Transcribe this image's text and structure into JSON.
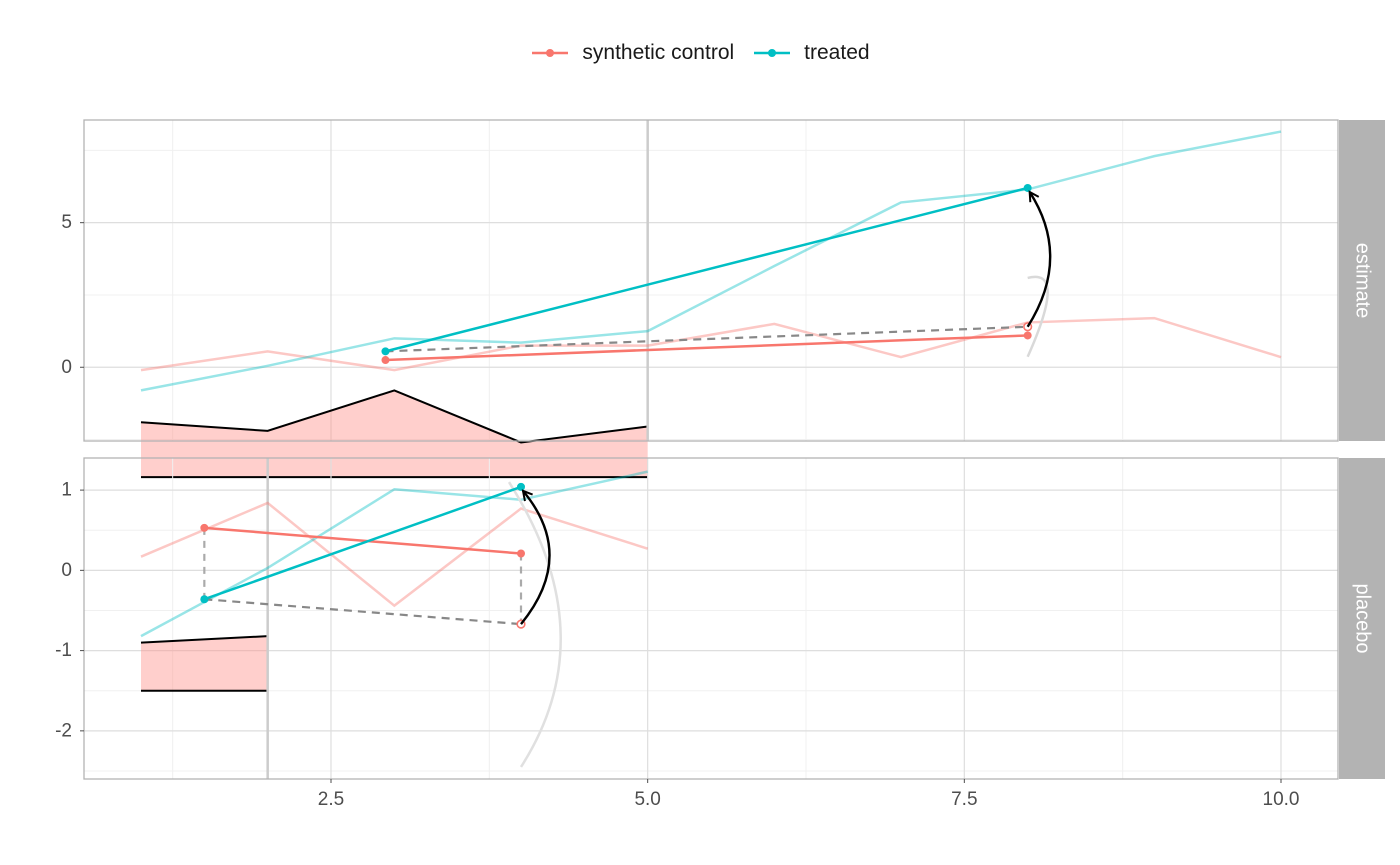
{
  "legend": {
    "items": [
      {
        "label": "synthetic control",
        "color": "#F8766D"
      },
      {
        "label": "treated",
        "color": "#00BFC4"
      }
    ]
  },
  "chart_data": {
    "type": "line",
    "xlabel": "",
    "ylabel": "",
    "x_ticks": [
      "2.5",
      "5.0",
      "7.5",
      "10.0"
    ],
    "xlim": [
      0.55,
      10.45
    ],
    "grid": true,
    "legend_position": "top",
    "colors": {
      "synthetic_control": "#F8766D",
      "treated": "#00BFC4",
      "ribbon": "#FF8C86"
    },
    "panels": [
      {
        "strip": "estimate",
        "ylim": [
          -2.55,
          8.55
        ],
        "y_ticks": [
          {
            "v": 5,
            "label": "5"
          },
          {
            "v": 0,
            "label": "0"
          }
        ],
        "treatment_time": 5,
        "series": [
          {
            "name": "synthetic control",
            "x": [
              1,
              2,
              3,
              4,
              5,
              6,
              7,
              8,
              9,
              10
            ],
            "y": [
              -0.1,
              0.55,
              -0.1,
              0.75,
              0.75,
              1.5,
              0.35,
              1.55,
              1.7,
              0.35
            ]
          },
          {
            "name": "treated",
            "x": [
              1,
              2,
              3,
              4,
              5,
              6,
              7,
              8,
              9,
              10
            ],
            "y": [
              -0.8,
              0.05,
              1.0,
              0.85,
              1.25,
              3.5,
              5.7,
              6.15,
              7.3,
              8.15
            ]
          }
        ],
        "pre_mean_sc": {
          "x": [
            2.93,
            8
          ],
          "y": [
            0.25,
            1.1
          ]
        },
        "pre_mean_tr": {
          "x": [
            2.93,
            8
          ],
          "y": [
            0.55,
            6.2
          ]
        },
        "dashed": {
          "x": [
            2.93,
            8
          ],
          "y": [
            0.55,
            1.4
          ]
        },
        "hollow_point": {
          "x": 8,
          "y": 1.4
        },
        "arrow": {
          "x": 8,
          "from": 1.4,
          "to": 6.2
        },
        "ribbon": {
          "x": [
            1,
            2,
            3,
            4,
            5
          ],
          "y": [
            -1.9,
            -2.2,
            -0.8,
            -2.6,
            -2.05
          ],
          "base": -3.8
        }
      },
      {
        "strip": "placebo",
        "ylim": [
          -2.6,
          1.4
        ],
        "y_ticks": [
          {
            "v": 1,
            "label": "1"
          },
          {
            "v": 0,
            "label": "0"
          },
          {
            "v": -1,
            "label": "-1"
          },
          {
            "v": -2,
            "label": "-2"
          }
        ],
        "treatment_time": 2,
        "series": [
          {
            "name": "synthetic control",
            "x": [
              1,
              2,
              3,
              4,
              5
            ],
            "y": [
              0.17,
              0.84,
              -0.44,
              0.77,
              0.27
            ]
          },
          {
            "name": "treated",
            "x": [
              1,
              2,
              3,
              4,
              5
            ],
            "y": [
              -0.82,
              0.03,
              1.01,
              0.88,
              1.23
            ]
          }
        ],
        "pre_mean_sc": {
          "x": [
            1.5,
            4
          ],
          "y": [
            0.53,
            0.21
          ]
        },
        "pre_mean_tr": {
          "x": [
            1.5,
            4
          ],
          "y": [
            -0.36,
            1.04
          ]
        },
        "dashed": {
          "x": [
            1.5,
            4
          ],
          "y": [
            -0.36,
            -0.67
          ]
        },
        "hollow_point": {
          "x": 4,
          "y": -0.67
        },
        "arrow": {
          "x": 4,
          "from": -0.67,
          "to": 1.04
        },
        "ribbon": {
          "x": [
            1,
            2
          ],
          "y": [
            -0.9,
            -0.82
          ],
          "base": -1.5
        }
      }
    ]
  }
}
